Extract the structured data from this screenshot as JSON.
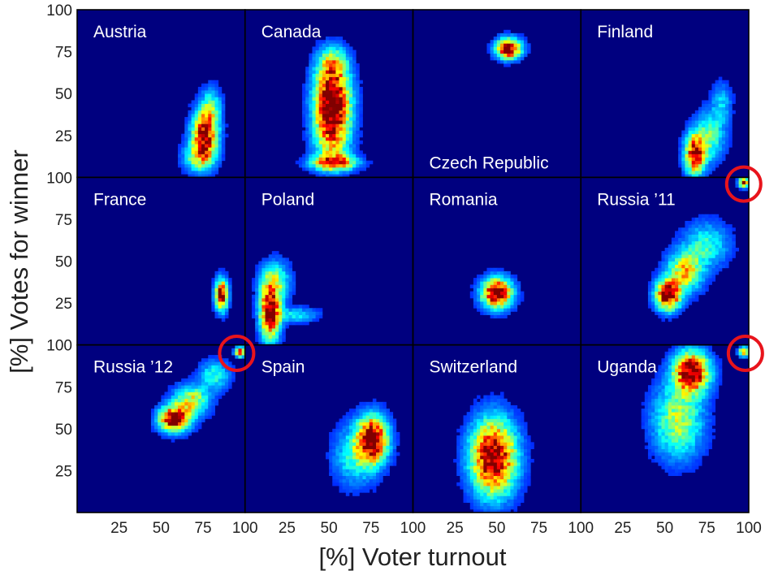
{
  "chart_data": {
    "type": "heatmap",
    "description_kind": "small-multiples 2D histogram grid",
    "xlabel": "[%] Voter turnout",
    "ylabel": "[%] Votes for winner",
    "xlim": [
      0,
      100
    ],
    "ylim": [
      0,
      100
    ],
    "x_ticks": [
      "25",
      "50",
      "75",
      "100"
    ],
    "y_ticks": [
      "25",
      "50",
      "75",
      "100"
    ],
    "colormap": "jet",
    "background_color": "#00007f",
    "highlight_color": "#e8141c",
    "grid": {
      "rows": 3,
      "cols": 4
    },
    "panels": [
      {
        "name": "Austria",
        "blobs": [
          {
            "x": 76,
            "y": 25,
            "sx": 5,
            "sy": 10,
            "w": 0.9
          },
          {
            "x": 72,
            "y": 12,
            "sx": 6,
            "sy": 6,
            "w": 0.35
          },
          {
            "x": 80,
            "y": 42,
            "sx": 4,
            "sy": 8,
            "w": 0.3
          }
        ]
      },
      {
        "name": "Canada",
        "blobs": [
          {
            "x": 52,
            "y": 47,
            "sx": 7,
            "sy": 13,
            "w": 1.0
          },
          {
            "x": 52,
            "y": 25,
            "sx": 7,
            "sy": 12,
            "w": 0.55
          },
          {
            "x": 53,
            "y": 9,
            "sx": 9,
            "sy": 3,
            "w": 0.7
          },
          {
            "x": 52,
            "y": 68,
            "sx": 6,
            "sy": 7,
            "w": 0.4
          }
        ]
      },
      {
        "name": "Czech Republic",
        "blobs": [
          {
            "x": 57,
            "y": 77,
            "sx": 5,
            "sy": 4,
            "w": 1.0
          }
        ]
      },
      {
        "name": "Finland",
        "blobs": [
          {
            "x": 68,
            "y": 14,
            "sx": 4,
            "sy": 8,
            "w": 0.9
          },
          {
            "x": 77,
            "y": 25,
            "sx": 6,
            "sy": 10,
            "w": 0.35
          },
          {
            "x": 84,
            "y": 45,
            "sx": 4,
            "sy": 8,
            "w": 0.2
          }
        ]
      },
      {
        "name": "France",
        "blobs": [
          {
            "x": 86,
            "y": 30,
            "sx": 2.5,
            "sy": 6,
            "w": 1.0
          }
        ]
      },
      {
        "name": "Poland",
        "blobs": [
          {
            "x": 15,
            "y": 20,
            "sx": 4,
            "sy": 11,
            "w": 1.0
          },
          {
            "x": 18,
            "y": 38,
            "sx": 6,
            "sy": 8,
            "w": 0.35
          },
          {
            "x": 30,
            "y": 18,
            "sx": 9,
            "sy": 3,
            "w": 0.25
          }
        ]
      },
      {
        "name": "Romania",
        "blobs": [
          {
            "x": 50,
            "y": 31,
            "sx": 6,
            "sy": 6,
            "w": 1.0
          }
        ]
      },
      {
        "name": "Russia ’11",
        "blobs": [
          {
            "x": 52,
            "y": 30,
            "sx": 5,
            "sy": 6,
            "w": 1.0
          },
          {
            "x": 62,
            "y": 44,
            "sx": 7,
            "sy": 8,
            "w": 0.55
          },
          {
            "x": 75,
            "y": 60,
            "sx": 9,
            "sy": 9,
            "w": 0.3
          },
          {
            "x": 97,
            "y": 97,
            "sx": 2,
            "sy": 2,
            "w": 0.8
          }
        ],
        "highlight": {
          "x": 97,
          "y": 96
        }
      },
      {
        "name": "Russia ’12",
        "blobs": [
          {
            "x": 58,
            "y": 56,
            "sx": 6,
            "sy": 5,
            "w": 1.0
          },
          {
            "x": 68,
            "y": 67,
            "sx": 7,
            "sy": 6,
            "w": 0.5
          },
          {
            "x": 82,
            "y": 82,
            "sx": 6,
            "sy": 6,
            "w": 0.3
          },
          {
            "x": 97,
            "y": 96,
            "sx": 2,
            "sy": 2,
            "w": 0.8
          }
        ],
        "highlight": {
          "x": 95,
          "y": 95
        }
      },
      {
        "name": "Spain",
        "blobs": [
          {
            "x": 76,
            "y": 44,
            "sx": 6,
            "sy": 9,
            "w": 1.0
          },
          {
            "x": 66,
            "y": 34,
            "sx": 9,
            "sy": 12,
            "w": 0.3
          }
        ]
      },
      {
        "name": "Switzerland",
        "blobs": [
          {
            "x": 48,
            "y": 33,
            "sx": 9,
            "sy": 15,
            "w": 1.0
          }
        ]
      },
      {
        "name": "Uganda",
        "blobs": [
          {
            "x": 66,
            "y": 84,
            "sx": 7,
            "sy": 8,
            "w": 1.0
          },
          {
            "x": 58,
            "y": 55,
            "sx": 10,
            "sy": 15,
            "w": 0.45
          },
          {
            "x": 97,
            "y": 96,
            "sx": 2,
            "sy": 2,
            "w": 0.7
          }
        ],
        "highlight": {
          "x": 98,
          "y": 95
        }
      }
    ]
  }
}
